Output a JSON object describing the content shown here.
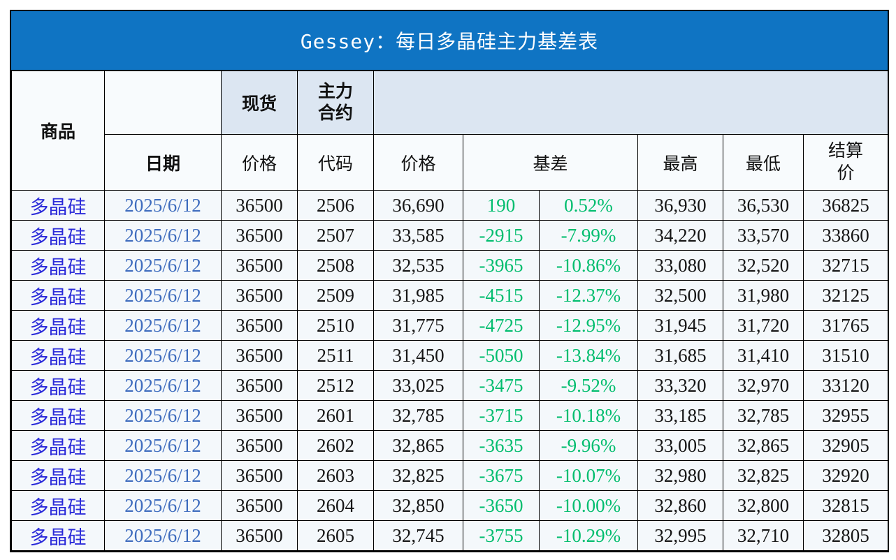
{
  "title": "Gessey：每日多晶硅主力基差表",
  "colors": {
    "title_bg": "#0f74c3",
    "title_text": "#ffffff",
    "border": "#000000",
    "header_blue_cell": "#dce6f2",
    "header_white_cell": "#f8fbfd",
    "row_bg": "#f4f8fb",
    "commodity_text": "#2a2ad9",
    "date_text": "#3e6cbe",
    "basis_green": "#00bd6e",
    "number_text": "#151515"
  },
  "table": {
    "header": {
      "commodity": "商品",
      "date": "日期",
      "spot": "现货",
      "spot_price_label": "价格",
      "main_contract_lines": [
        "主力",
        "合约"
      ],
      "code": "代码",
      "price": "价格",
      "basis": "基差",
      "high": "最高",
      "low": "最低",
      "settlement_lines": [
        "结算",
        "价"
      ]
    },
    "rows": [
      {
        "commodity": "多晶硅",
        "date": "2025/6/12",
        "spot_price": "36500",
        "code": "2506",
        "price": "36,690",
        "basis": "190",
        "basis_pct": "0.52%",
        "high": "36,930",
        "low": "36,530",
        "settlement": "36825"
      },
      {
        "commodity": "多晶硅",
        "date": "2025/6/12",
        "spot_price": "36500",
        "code": "2507",
        "price": "33,585",
        "basis": "-2915",
        "basis_pct": "-7.99%",
        "high": "34,220",
        "low": "33,570",
        "settlement": "33860"
      },
      {
        "commodity": "多晶硅",
        "date": "2025/6/12",
        "spot_price": "36500",
        "code": "2508",
        "price": "32,535",
        "basis": "-3965",
        "basis_pct": "-10.86%",
        "high": "33,080",
        "low": "32,520",
        "settlement": "32715"
      },
      {
        "commodity": "多晶硅",
        "date": "2025/6/12",
        "spot_price": "36500",
        "code": "2509",
        "price": "31,985",
        "basis": "-4515",
        "basis_pct": "-12.37%",
        "high": "32,500",
        "low": "31,980",
        "settlement": "32125"
      },
      {
        "commodity": "多晶硅",
        "date": "2025/6/12",
        "spot_price": "36500",
        "code": "2510",
        "price": "31,775",
        "basis": "-4725",
        "basis_pct": "-12.95%",
        "high": "31,945",
        "low": "31,720",
        "settlement": "31765"
      },
      {
        "commodity": "多晶硅",
        "date": "2025/6/12",
        "spot_price": "36500",
        "code": "2511",
        "price": "31,450",
        "basis": "-5050",
        "basis_pct": "-13.84%",
        "high": "31,685",
        "low": "31,410",
        "settlement": "31510"
      },
      {
        "commodity": "多晶硅",
        "date": "2025/6/12",
        "spot_price": "36500",
        "code": "2512",
        "price": "33,025",
        "basis": "-3475",
        "basis_pct": "-9.52%",
        "high": "33,320",
        "low": "32,970",
        "settlement": "33120"
      },
      {
        "commodity": "多晶硅",
        "date": "2025/6/12",
        "spot_price": "36500",
        "code": "2601",
        "price": "32,785",
        "basis": "-3715",
        "basis_pct": "-10.18%",
        "high": "33,185",
        "low": "32,785",
        "settlement": "32955"
      },
      {
        "commodity": "多晶硅",
        "date": "2025/6/12",
        "spot_price": "36500",
        "code": "2602",
        "price": "32,865",
        "basis": "-3635",
        "basis_pct": "-9.96%",
        "high": "33,005",
        "low": "32,865",
        "settlement": "32905"
      },
      {
        "commodity": "多晶硅",
        "date": "2025/6/12",
        "spot_price": "36500",
        "code": "2603",
        "price": "32,825",
        "basis": "-3675",
        "basis_pct": "-10.07%",
        "high": "32,980",
        "low": "32,825",
        "settlement": "32920"
      },
      {
        "commodity": "多晶硅",
        "date": "2025/6/12",
        "spot_price": "36500",
        "code": "2604",
        "price": "32,850",
        "basis": "-3650",
        "basis_pct": "-10.00%",
        "high": "32,860",
        "low": "32,800",
        "settlement": "32815"
      },
      {
        "commodity": "多晶硅",
        "date": "2025/6/12",
        "spot_price": "36500",
        "code": "2605",
        "price": "32,745",
        "basis": "-3755",
        "basis_pct": "-10.29%",
        "high": "32,995",
        "low": "32,710",
        "settlement": "32805"
      }
    ]
  },
  "chart_data": {
    "type": "table",
    "title": "Gessey：每日多晶硅主力基差表",
    "columns": [
      "商品",
      "日期",
      "现货价格",
      "主力合约代码",
      "价格",
      "基差",
      "基差%",
      "最高",
      "最低",
      "结算价"
    ],
    "rows": [
      [
        "多晶硅",
        "2025/6/12",
        36500,
        "2506",
        36690,
        190,
        "0.52%",
        36930,
        36530,
        36825
      ],
      [
        "多晶硅",
        "2025/6/12",
        36500,
        "2507",
        33585,
        -2915,
        "-7.99%",
        34220,
        33570,
        33860
      ],
      [
        "多晶硅",
        "2025/6/12",
        36500,
        "2508",
        32535,
        -3965,
        "-10.86%",
        33080,
        32520,
        32715
      ],
      [
        "多晶硅",
        "2025/6/12",
        36500,
        "2509",
        31985,
        -4515,
        "-12.37%",
        32500,
        31980,
        32125
      ],
      [
        "多晶硅",
        "2025/6/12",
        36500,
        "2510",
        31775,
        -4725,
        "-12.95%",
        31945,
        31720,
        31765
      ],
      [
        "多晶硅",
        "2025/6/12",
        36500,
        "2511",
        31450,
        -5050,
        "-13.84%",
        31685,
        31410,
        31510
      ],
      [
        "多晶硅",
        "2025/6/12",
        36500,
        "2512",
        33025,
        -3475,
        "-9.52%",
        33320,
        32970,
        33120
      ],
      [
        "多晶硅",
        "2025/6/12",
        36500,
        "2601",
        32785,
        -3715,
        "-10.18%",
        33185,
        32785,
        32955
      ],
      [
        "多晶硅",
        "2025/6/12",
        36500,
        "2602",
        32865,
        -3635,
        "-9.96%",
        33005,
        32865,
        32905
      ],
      [
        "多晶硅",
        "2025/6/12",
        36500,
        "2603",
        32825,
        -3675,
        "-10.07%",
        32980,
        32825,
        32920
      ],
      [
        "多晶硅",
        "2025/6/12",
        36500,
        "2604",
        32850,
        -3650,
        "-10.00%",
        32860,
        32800,
        32815
      ],
      [
        "多晶硅",
        "2025/6/12",
        36500,
        "2605",
        32745,
        -3755,
        "-10.29%",
        32995,
        32710,
        32805
      ]
    ]
  }
}
